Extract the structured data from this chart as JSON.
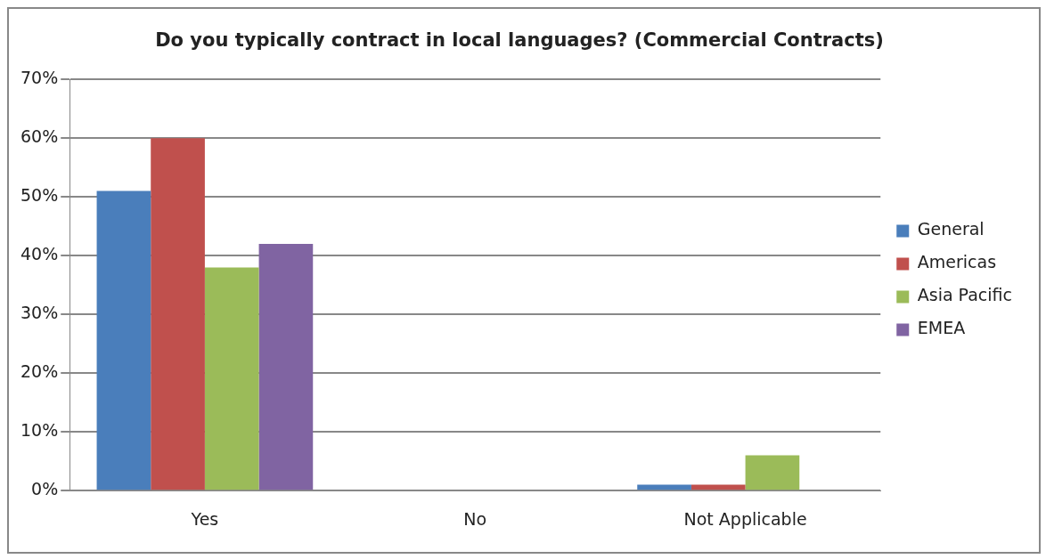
{
  "chart_data": {
    "type": "bar",
    "title": "Do you typically contract in local languages? (Commercial Contracts)",
    "categories": [
      "Yes",
      "No",
      "Not Applicable"
    ],
    "series": [
      {
        "name": "General",
        "color": "#4a7ebb",
        "values": [
          51,
          0,
          1
        ]
      },
      {
        "name": "Americas",
        "color": "#c0504d",
        "values": [
          60,
          0,
          1
        ]
      },
      {
        "name": "Asia Pacific",
        "color": "#9bbb59",
        "values": [
          38,
          0,
          6
        ]
      },
      {
        "name": "EMEA",
        "color": "#8064a2",
        "values": [
          42,
          0,
          0
        ]
      }
    ],
    "ylim": [
      0,
      70
    ],
    "yticks": [
      {
        "value": 0,
        "label": "0%"
      },
      {
        "value": 10,
        "label": "10%"
      },
      {
        "value": 20,
        "label": "20%"
      },
      {
        "value": 30,
        "label": "30%"
      },
      {
        "value": 40,
        "label": "40%"
      },
      {
        "value": 50,
        "label": "50%"
      },
      {
        "value": 60,
        "label": "60%"
      },
      {
        "value": 70,
        "label": "70%"
      }
    ],
    "grid": "y",
    "legend": "right"
  }
}
